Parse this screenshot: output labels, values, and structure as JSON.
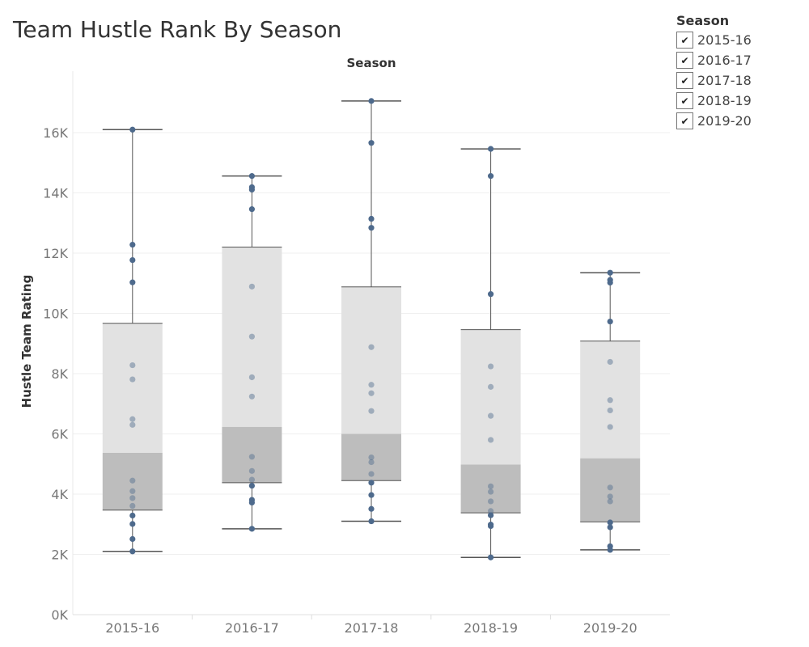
{
  "title": "Team Hustle Rank By Season",
  "legend": {
    "title": "Season",
    "items": [
      {
        "label": "2015-16",
        "checked": true
      },
      {
        "label": "2016-17",
        "checked": true
      },
      {
        "label": "2017-18",
        "checked": true
      },
      {
        "label": "2018-19",
        "checked": true
      },
      {
        "label": "2019-20",
        "checked": true
      }
    ]
  },
  "check_glyph": "✔",
  "colors": {
    "point": "#4e6a8c",
    "box_upper": "#e2e2e2",
    "box_lower": "#bdbdbd",
    "whisker": "#555555",
    "grid": "#efefef"
  },
  "chart_data": {
    "type": "box",
    "title": "Team Hustle Rank By Season",
    "column_header": "Season",
    "ylabel": "Hustle Team Rating",
    "xlabel": "",
    "ylim": [
      0,
      17600
    ],
    "yticks": [
      0,
      2000,
      4000,
      6000,
      8000,
      10000,
      12000,
      14000,
      16000
    ],
    "ytick_labels": [
      "0K",
      "2K",
      "4K",
      "6K",
      "8K",
      "10K",
      "12K",
      "14K",
      "16K"
    ],
    "grid": true,
    "categories": [
      "2015-16",
      "2016-17",
      "2017-18",
      "2018-19",
      "2019-20"
    ],
    "boxes": [
      {
        "min": 2100,
        "q1": 3470,
        "median": 5370,
        "q3": 9670,
        "max": 16100
      },
      {
        "min": 2850,
        "q1": 4380,
        "median": 6230,
        "q3": 12200,
        "max": 14560
      },
      {
        "min": 3100,
        "q1": 4450,
        "median": 6000,
        "q3": 10880,
        "max": 17050
      },
      {
        "min": 1900,
        "q1": 3380,
        "median": 4980,
        "q3": 9460,
        "max": 15460
      },
      {
        "min": 2150,
        "q1": 3080,
        "median": 5190,
        "q3": 9080,
        "max": 11350
      }
    ],
    "points": [
      [
        16100,
        12280,
        11770,
        11030,
        8280,
        7810,
        6490,
        6300,
        4450,
        4100,
        3870,
        3610,
        3290,
        3010,
        2510,
        2100
      ],
      [
        14560,
        14190,
        14110,
        13460,
        10890,
        9230,
        7880,
        7240,
        5240,
        4770,
        4480,
        4280,
        3810,
        3720,
        2850
      ],
      [
        17050,
        15660,
        13140,
        12840,
        8880,
        7630,
        7350,
        6760,
        5220,
        5060,
        4670,
        4380,
        3970,
        3510,
        3100
      ],
      [
        15460,
        14560,
        10640,
        8240,
        7560,
        6600,
        5800,
        4260,
        4080,
        3760,
        3440,
        3300,
        2990,
        2940,
        1900
      ],
      [
        11350,
        11110,
        11020,
        9730,
        8390,
        7120,
        6780,
        6230,
        4220,
        3920,
        3760,
        3060,
        2900,
        2270,
        2150
      ]
    ]
  }
}
